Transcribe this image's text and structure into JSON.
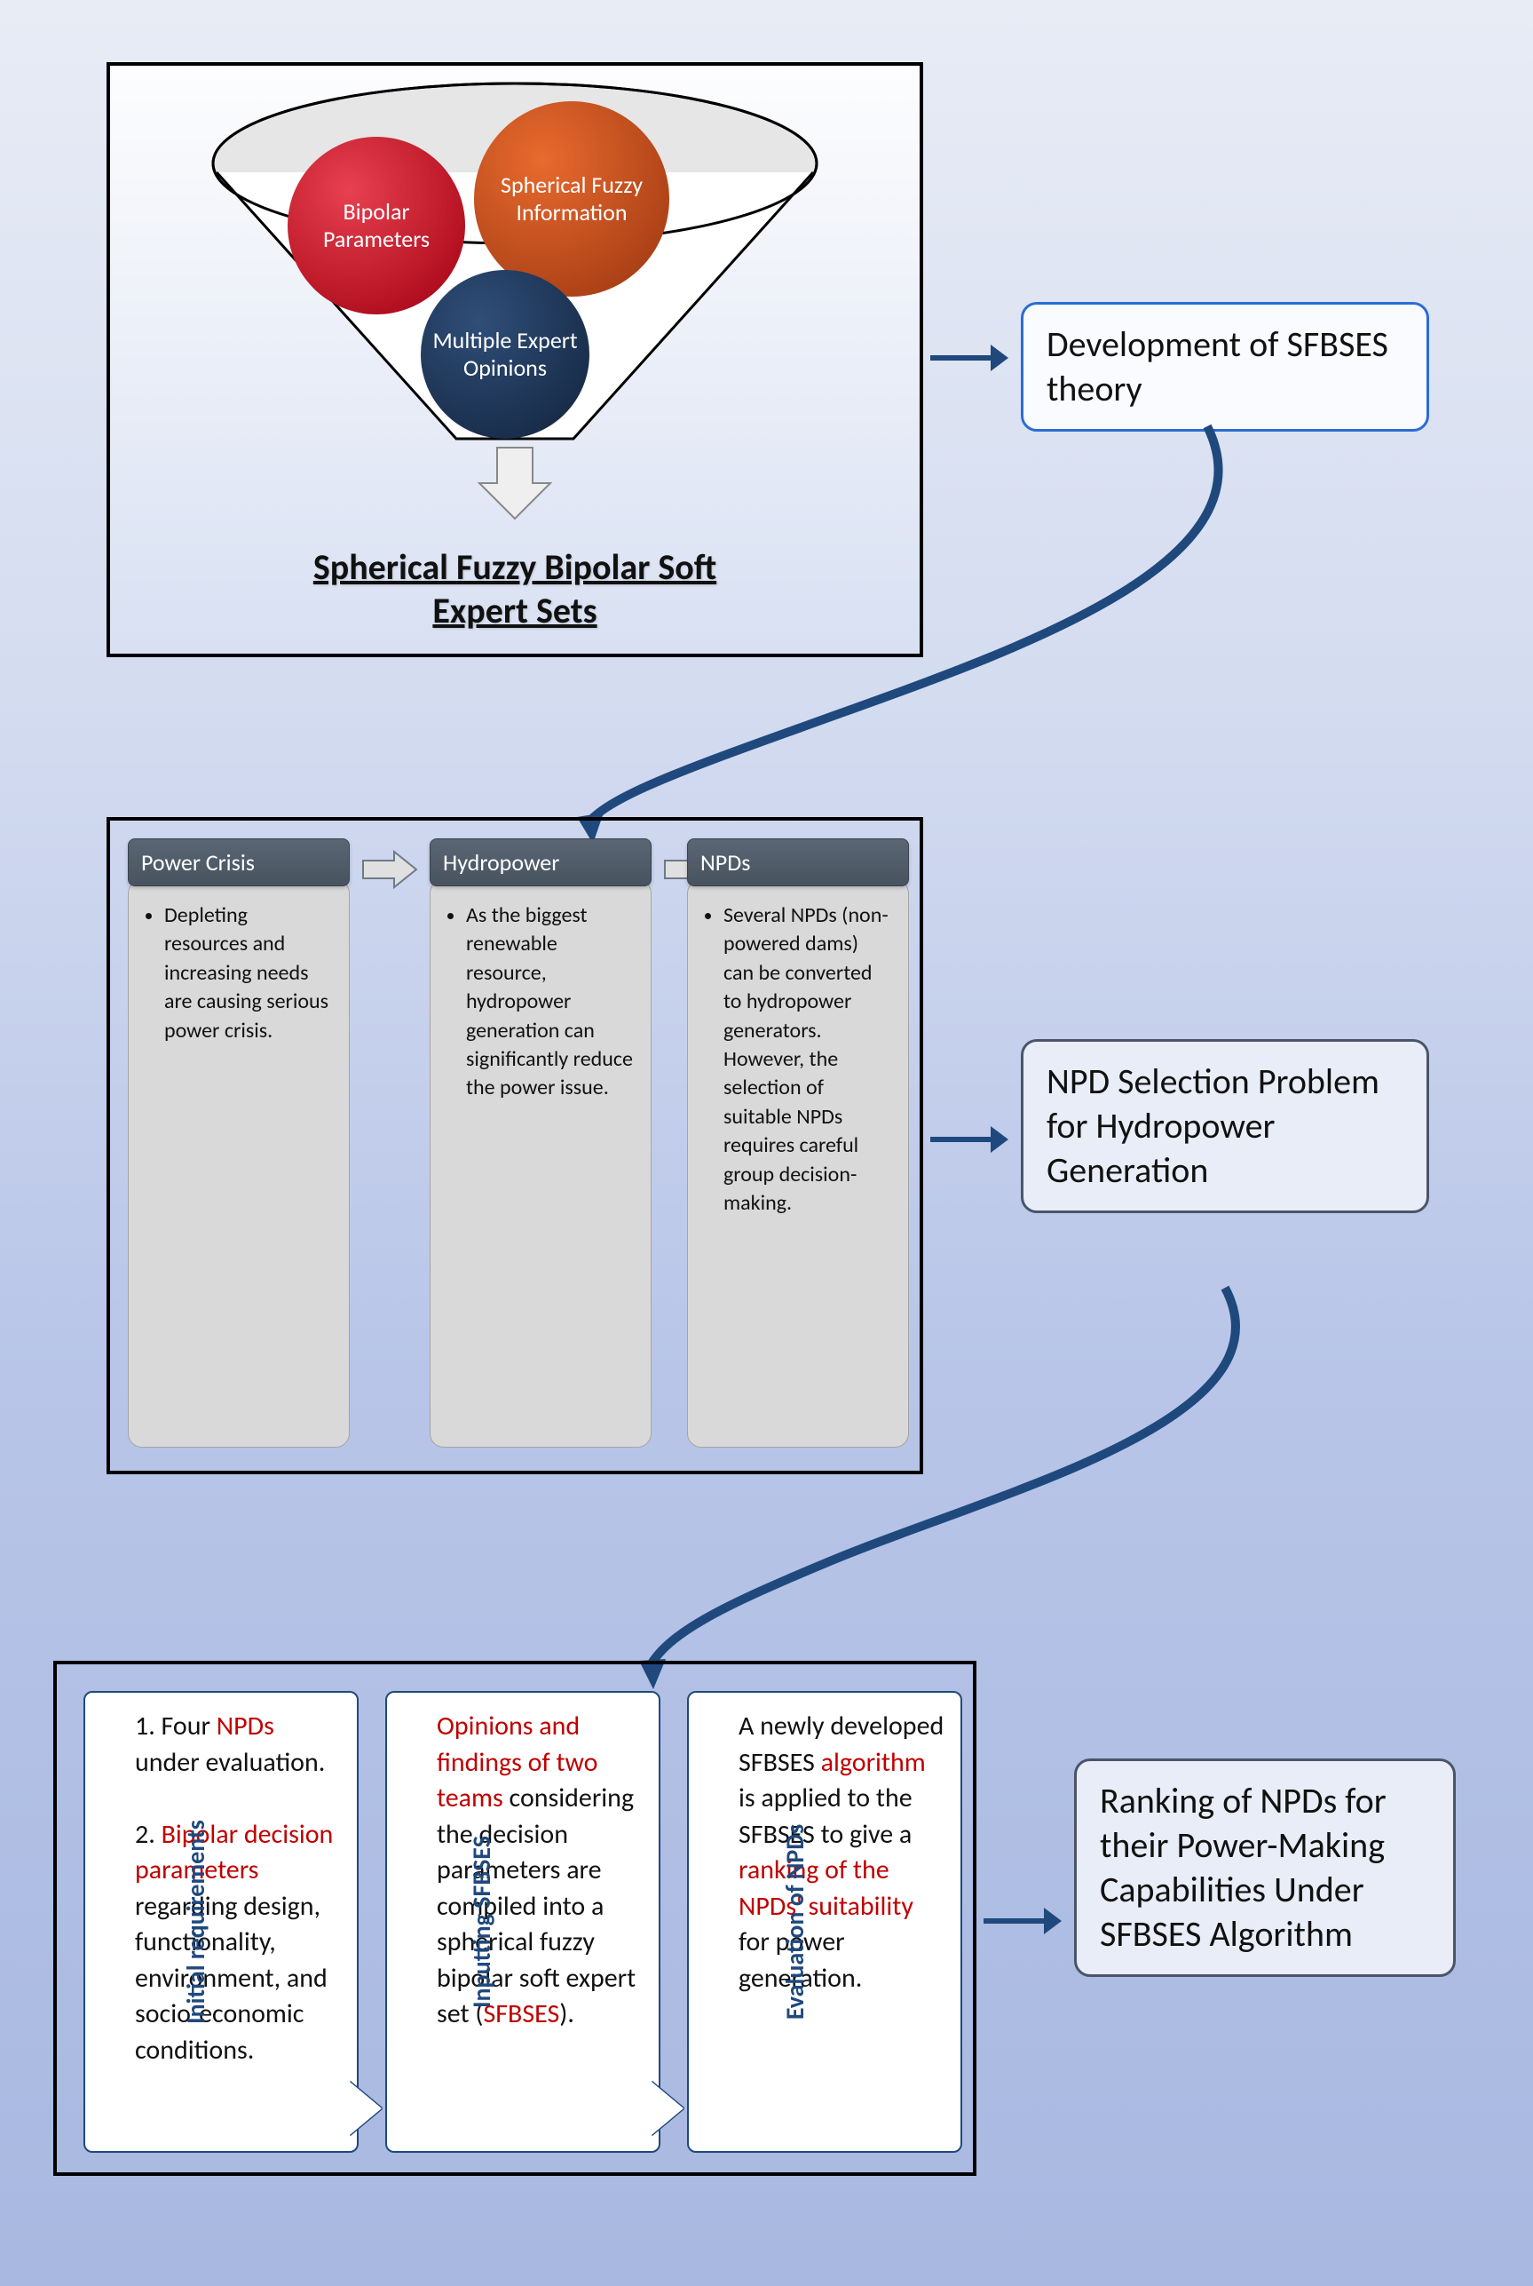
{
  "colors": {
    "bipolar": "#c8102e",
    "spherical": "#c0481a",
    "opinions": "#1f3a5f",
    "funnel_fill": "#e6e6e6",
    "funnel_stroke": "#000000",
    "connector": "#1f497d",
    "arrow_gray_fill": "#e0e0e0",
    "arrow_gray_stroke": "#6f7a87"
  },
  "panel1": {
    "circles": {
      "bipolar": "Bipolar Parameters",
      "spherical": "Spherical Fuzzy Information",
      "opinions": "Multiple Expert Opinions"
    },
    "title_line1": "Spherical Fuzzy Bipolar Soft",
    "title_line2": "Expert Sets"
  },
  "callout1": "Development of SFBSES theory",
  "panel2": {
    "cols": [
      {
        "header": "Power Crisis",
        "body": "Depleting resources and increasing needs are causing serious power crisis."
      },
      {
        "header": "Hydropower",
        "body": "As the biggest renewable resource, hydropower generation can significantly reduce the power issue."
      },
      {
        "header": "NPDs",
        "body": "Several NPDs (non-powered dams) can be converted to hydropower generators. However, the selection of suitable NPDs requires careful group decision-making."
      }
    ]
  },
  "callout2": "NPD Selection Problem for Hydropower Generation",
  "panel3": {
    "cards": [
      {
        "vlabel": "Initial requirements",
        "segments": [
          {
            "t": "1. Four "
          },
          {
            "t": "NPDs",
            "red": true
          },
          {
            "t": " under evaluation.\n\n2. "
          },
          {
            "t": "Bipolar decision parameters",
            "red": true
          },
          {
            "t": " regarding design, functionality, environment, and socio-economic conditions."
          }
        ]
      },
      {
        "vlabel": "Inputting SFBSES",
        "segments": [
          {
            "t": "Opinions and findings of two teams",
            "red": true
          },
          {
            "t": " considering the decision parameters are compiled into a spherical fuzzy bipolar soft expert set ("
          },
          {
            "t": "SFBSES",
            "red": true
          },
          {
            "t": ")."
          }
        ]
      },
      {
        "vlabel": "Evaluation of NPDs",
        "segments": [
          {
            "t": "A newly developed SFBSES "
          },
          {
            "t": "algorithm",
            "red": true
          },
          {
            "t": " is applied to the SFBSES to give a "
          },
          {
            "t": "ranking of the NPDs' suitability",
            "red": true
          },
          {
            "t": " for power generation."
          }
        ]
      }
    ]
  },
  "callout3": "Ranking of NPDs for their Power-Making Capabilities Under SFBSES Algorithm"
}
